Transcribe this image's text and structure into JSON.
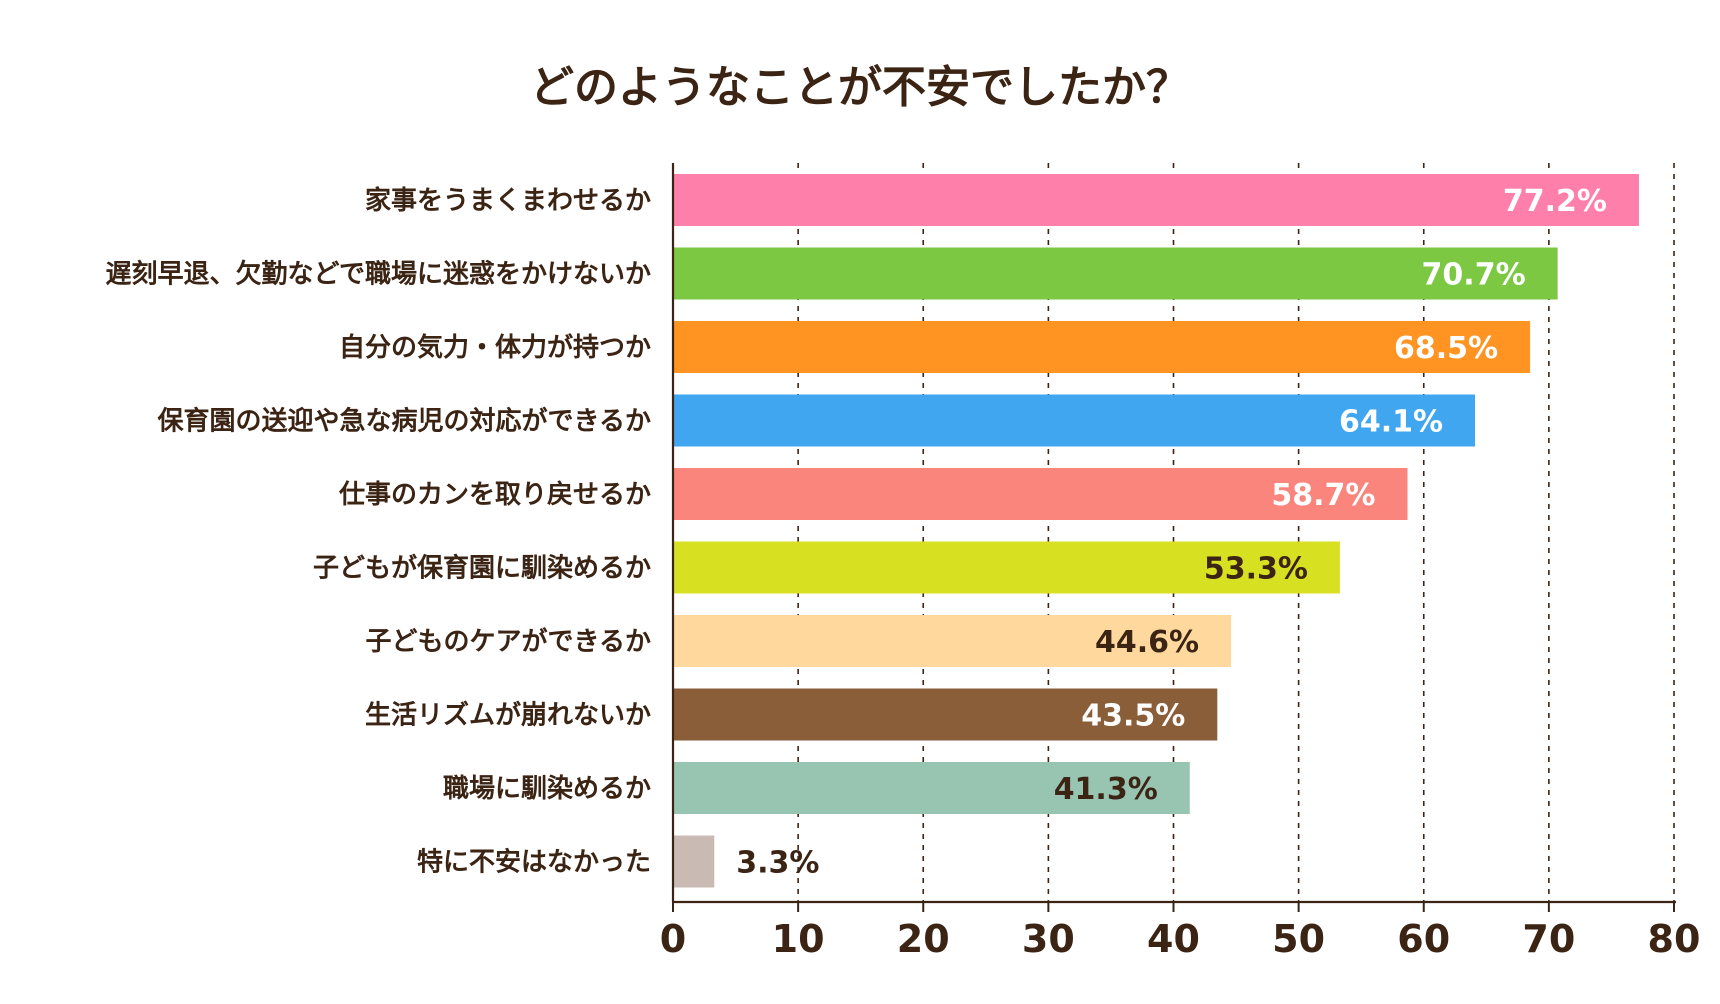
{
  "chart_data": {
    "type": "bar",
    "orientation": "horizontal",
    "title": "どのようなことが不安でしたか？",
    "xlabel": "",
    "ylabel": "",
    "xlim": [
      0,
      80
    ],
    "xticks": [
      0,
      10,
      20,
      30,
      40,
      50,
      60,
      70,
      80
    ],
    "grid": "vertical dashed",
    "categories": [
      "家事をうまくまわせるか",
      "遅刻早退、欠勤などで職場に迷惑をかけないか",
      "自分の気力・体力が持つか",
      "保育園の送迎や急な病児の対応ができるか",
      "仕事のカンを取り戻せるか",
      "子どもが保育園に馴染めるか",
      "子どものケアができるか",
      "生活リズムが崩れないか",
      "職場に馴染めるか",
      "特に不安はなかった"
    ],
    "values": [
      77.2,
      70.7,
      68.5,
      64.1,
      58.7,
      53.3,
      44.6,
      43.5,
      41.3,
      3.3
    ],
    "value_labels": [
      "77.2%",
      "70.7%",
      "68.5%",
      "64.1%",
      "58.7%",
      "53.3%",
      "44.6%",
      "43.5%",
      "41.3%",
      "3.3%"
    ],
    "colors": [
      "#ff7fab",
      "#7dc843",
      "#ff9422",
      "#41a6f0",
      "#fa857d",
      "#d7e021",
      "#ffd89d",
      "#8b5e3a",
      "#98c4b2",
      "#c9bbb3"
    ],
    "label_colors": [
      "#ffffff",
      "#ffffff",
      "#ffffff",
      "#ffffff",
      "#ffffff",
      "#3b2414",
      "#3b2414",
      "#ffffff",
      "#3b2414",
      "#3b2414"
    ]
  }
}
